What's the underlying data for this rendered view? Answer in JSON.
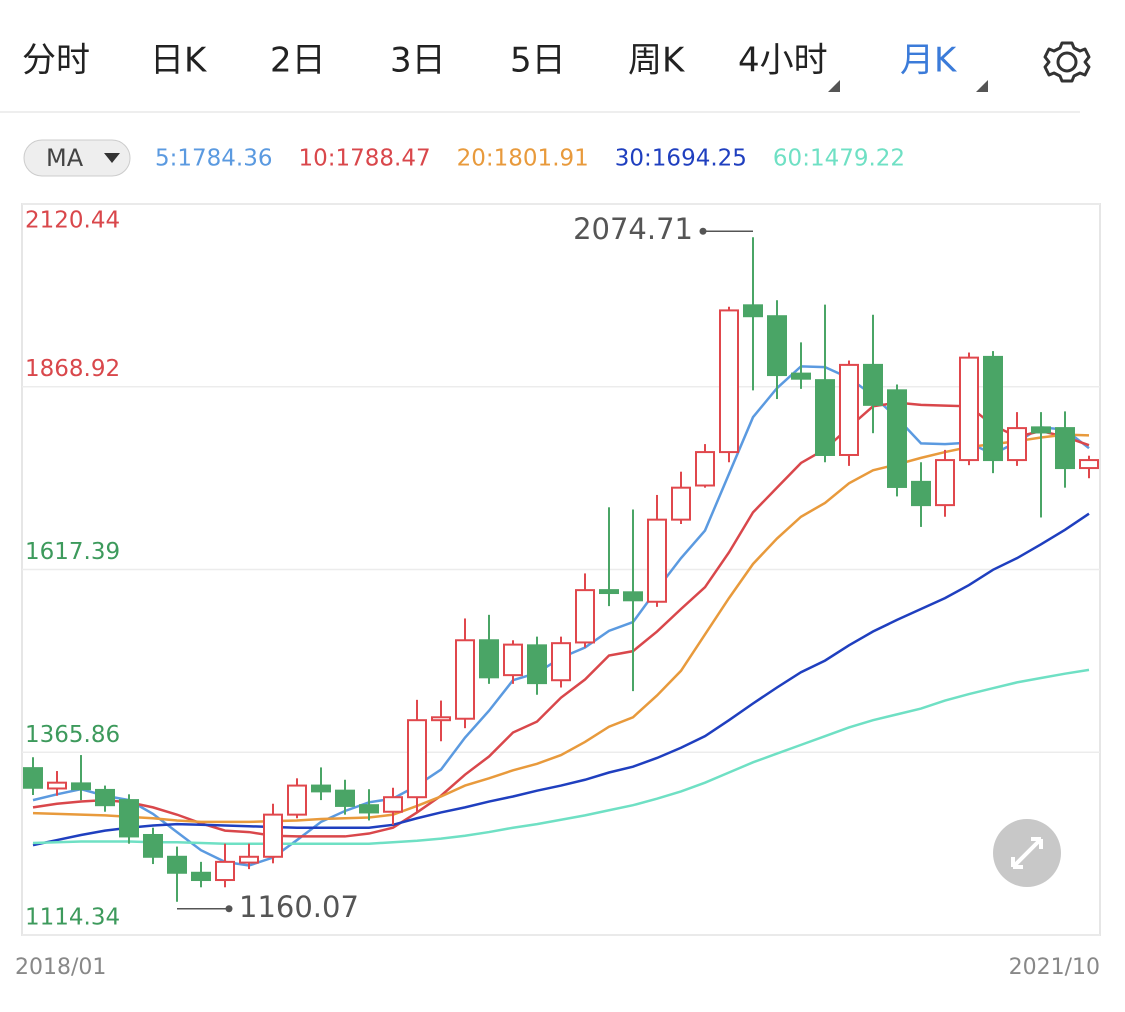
{
  "tabs": {
    "items": [
      "分时",
      "日K",
      "2日",
      "3日",
      "5日",
      "周K",
      "4小时",
      "月K"
    ],
    "active": 7,
    "dropdowns": [
      6,
      7
    ]
  },
  "chart_data": {
    "type": "candlestick",
    "indicator": "MA",
    "categories": [
      "2018/01",
      null,
      null,
      null,
      null,
      null,
      null,
      null,
      null,
      null,
      null,
      null,
      null,
      null,
      null,
      null,
      null,
      null,
      null,
      null,
      null,
      null,
      null,
      null,
      null,
      null,
      null,
      null,
      null,
      null,
      null,
      null,
      null,
      null,
      null,
      null,
      null,
      null,
      null,
      null,
      null,
      null,
      null,
      null,
      "2021/10"
    ],
    "open": [
      1344,
      1316,
      1323,
      1314,
      1300,
      1252,
      1222,
      1200,
      1190,
      1214,
      1222,
      1280,
      1320,
      1313,
      1293,
      1284,
      1304,
      1410,
      1412,
      1520,
      1472,
      1513,
      1465,
      1517,
      1589,
      1586,
      1573,
      1686,
      1733,
      1779,
      1981,
      1966,
      1887,
      1878,
      1775,
      1899,
      1864,
      1738,
      1706,
      1768,
      1910,
      1768,
      1813,
      1812,
      1757
    ],
    "high": [
      1359,
      1340,
      1362,
      1320,
      1308,
      1262,
      1236,
      1215,
      1240,
      1240,
      1295,
      1330,
      1345,
      1328,
      1315,
      1317,
      1438,
      1437,
      1550,
      1555,
      1520,
      1525,
      1525,
      1612,
      1703,
      1700,
      1720,
      1752,
      1790,
      1979,
      2074.71,
      1988,
      1930,
      1982,
      1905,
      1968,
      1872,
      1765,
      1782,
      1916,
      1918,
      1834,
      1834,
      1835,
      1774
    ],
    "low": [
      1307,
      1306,
      1300,
      1284,
      1240,
      1212,
      1160.07,
      1180,
      1180,
      1205,
      1213,
      1275,
      1300,
      1280,
      1272,
      1266,
      1283,
      1381,
      1399,
      1460,
      1460,
      1445,
      1455,
      1510,
      1567,
      1450,
      1566,
      1680,
      1730,
      1765,
      1864,
      1852,
      1866,
      1765,
      1760,
      1805,
      1718,
      1676,
      1690,
      1761,
      1750,
      1760,
      1689,
      1730,
      1743
    ],
    "close": [
      1317,
      1324,
      1315,
      1293,
      1250,
      1222,
      1200,
      1190,
      1215,
      1222,
      1280,
      1320,
      1312,
      1292,
      1283,
      1304,
      1410,
      1414,
      1520,
      1469,
      1514,
      1461,
      1516,
      1589,
      1585,
      1575,
      1686,
      1730,
      1779,
      1974,
      1966,
      1885,
      1880,
      1775,
      1899,
      1844,
      1731,
      1706,
      1768,
      1909,
      1768,
      1812,
      1806,
      1757,
      1768
    ],
    "up_color": "#e0474c",
    "down_color": "#4aa566",
    "ylim": [
      1114.34,
      2120.44
    ],
    "yticks": [
      1114.34,
      1365.86,
      1617.39,
      1868.92,
      2120.44
    ],
    "ytick_colors": [
      "#3d9a5c",
      "#3d9a5c",
      "#3d9a5c",
      "#d9474b",
      "#d9474b"
    ],
    "grid": true,
    "annotations": [
      {
        "path": "high",
        "index": 30
      },
      {
        "path": "low",
        "index": 6
      }
    ],
    "series": [
      {
        "name": "5:1784.36",
        "color": "#5b9ae0",
        "values": [
          1300,
          1308,
          1315,
          1306,
          1300,
          1281,
          1256,
          1231,
          1215,
          1210,
          1221,
          1245,
          1270,
          1285,
          1297,
          1302,
          1320,
          1342,
          1386,
          1423,
          1465,
          1475,
          1496,
          1510,
          1533,
          1545,
          1590,
          1633,
          1671,
          1749,
          1827,
          1867,
          1897,
          1896,
          1881,
          1857,
          1826,
          1791,
          1790,
          1792,
          1776,
          1793,
          1813,
          1810,
          1784.36
        ]
      },
      {
        "name": "10:1788.47",
        "color": "#d9474b",
        "values": [
          1290,
          1295,
          1298,
          1300,
          1297,
          1290,
          1280,
          1268,
          1258,
          1256,
          1251,
          1250,
          1250,
          1250,
          1254,
          1262,
          1283,
          1306,
          1335,
          1360,
          1393,
          1408,
          1441,
          1466,
          1499,
          1505,
          1532,
          1563,
          1593,
          1641,
          1696,
          1730,
          1764,
          1783,
          1813,
          1842,
          1847,
          1844,
          1843,
          1842,
          1816,
          1800,
          1808,
          1800,
          1788.47
        ]
      },
      {
        "name": "20:1801.91",
        "color": "#e89a3c",
        "values": [
          1282,
          1281,
          1280,
          1279,
          1277,
          1275,
          1272,
          1270,
          1270,
          1270,
          1271,
          1272,
          1274,
          1275,
          1276,
          1280,
          1292,
          1305,
          1320,
          1330,
          1341,
          1350,
          1362,
          1380,
          1401,
          1414,
          1444,
          1478,
          1528,
          1578,
          1625,
          1660,
          1690,
          1709,
          1736,
          1754,
          1762,
          1771,
          1779,
          1786,
          1790,
          1794,
          1799,
          1803,
          1801.91
        ]
      },
      {
        "name": "30:1694.25",
        "color": "#1f3fbf",
        "values": [
          1238,
          1245,
          1252,
          1258,
          1262,
          1265,
          1267,
          1266,
          1265,
          1264,
          1263,
          1262,
          1262,
          1262,
          1262,
          1266,
          1275,
          1283,
          1290,
          1298,
          1305,
          1313,
          1320,
          1328,
          1338,
          1346,
          1358,
          1372,
          1388,
          1410,
          1433,
          1455,
          1476,
          1492,
          1513,
          1532,
          1548,
          1563,
          1578,
          1596,
          1617,
          1633,
          1652,
          1672,
          1694.25
        ]
      },
      {
        "name": "60:1479.22",
        "color": "#6fe0c4",
        "values": [
          1241,
          1242,
          1243,
          1243,
          1243,
          1242,
          1242,
          1241,
          1240,
          1240,
          1240,
          1240,
          1240,
          1240,
          1240,
          1242,
          1244,
          1247,
          1251,
          1256,
          1262,
          1267,
          1273,
          1279,
          1286,
          1293,
          1302,
          1312,
          1324,
          1338,
          1352,
          1364,
          1376,
          1388,
          1400,
          1410,
          1418,
          1426,
          1437,
          1446,
          1454,
          1462,
          1468,
          1474,
          1479.22
        ]
      }
    ]
  }
}
